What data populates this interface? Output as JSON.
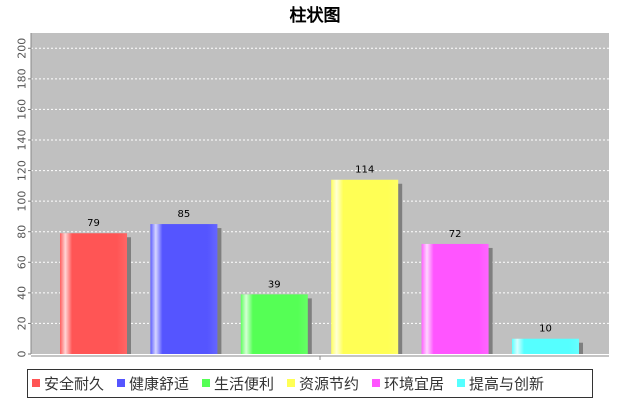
{
  "chart_data": {
    "type": "bar",
    "title": "柱状图",
    "categories": [
      "安全耐久",
      "健康舒适",
      "生活便利",
      "资源节约",
      "环境宜居",
      "提高与创新"
    ],
    "values": [
      79,
      85,
      39,
      114,
      72,
      10
    ],
    "value_labels": [
      "79",
      "85",
      "39",
      "114",
      "72",
      "10"
    ],
    "colors": [
      "#ff5555",
      "#5555ff",
      "#55ff55",
      "#ffff55",
      "#ff55ff",
      "#55ffff"
    ],
    "ylim": [
      0,
      210
    ],
    "yticks": [
      "0",
      "20",
      "40",
      "60",
      "80",
      "100",
      "120",
      "140",
      "160",
      "180",
      "200"
    ],
    "ytick_values": [
      0,
      20,
      40,
      60,
      80,
      100,
      120,
      140,
      160,
      180,
      200
    ],
    "grid": true,
    "legend": "bottom",
    "plot_background": "#c0c0c0"
  }
}
